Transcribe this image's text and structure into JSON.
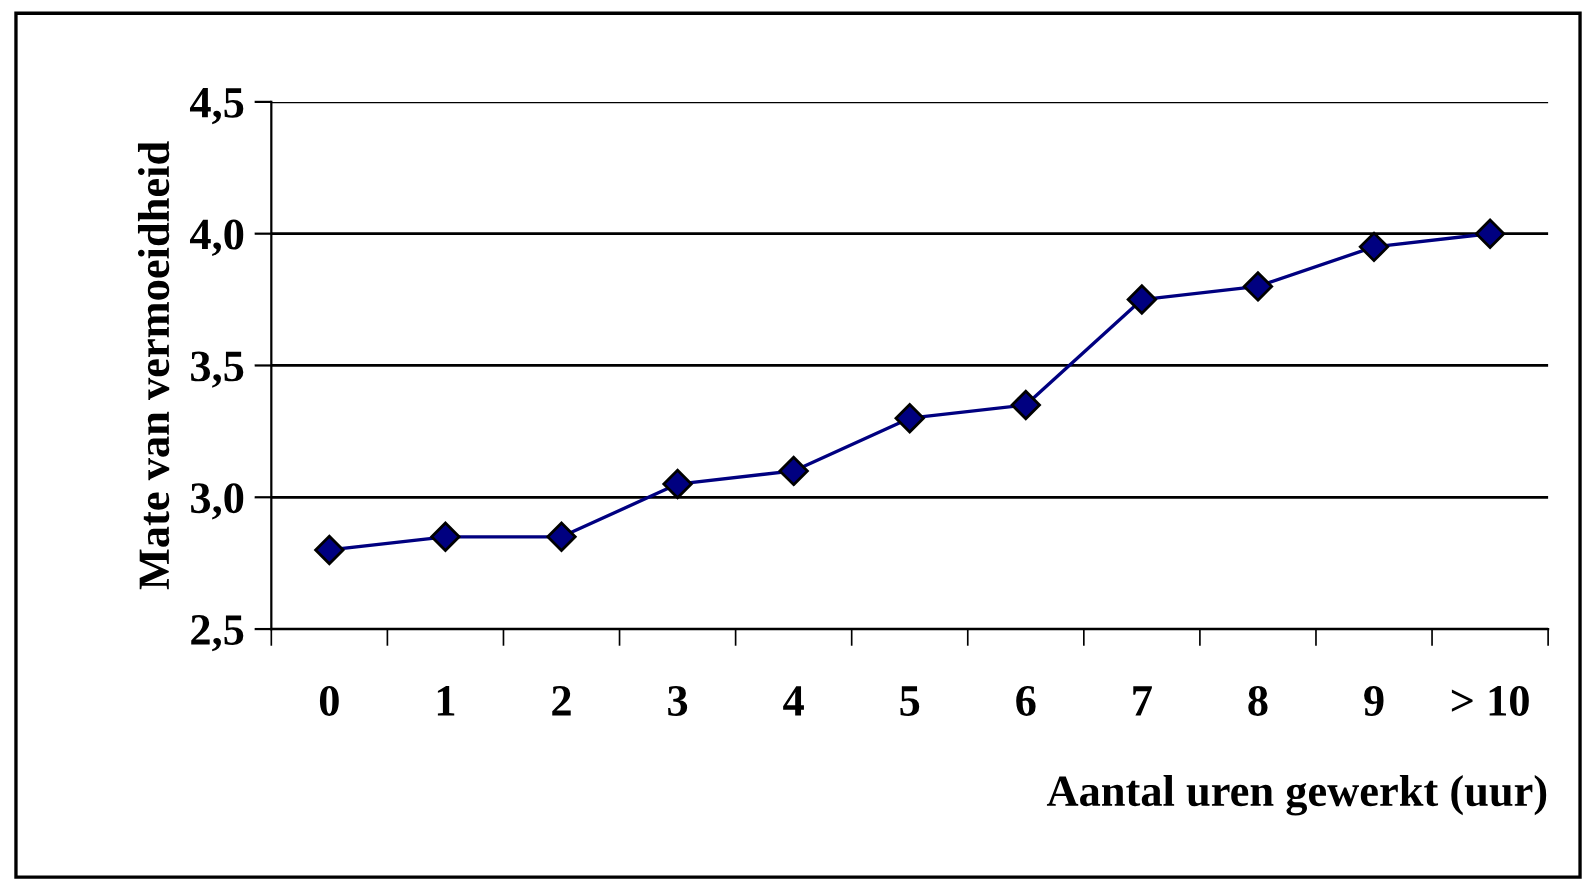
{
  "chart_data": {
    "type": "line",
    "xlabel": "Aantal uren gewerkt (uur)",
    "ylabel": "Mate van vermoeidheid",
    "categories": [
      "0",
      "1",
      "2",
      "3",
      "4",
      "5",
      "6",
      "7",
      "8",
      "9",
      "> 10"
    ],
    "series": [
      {
        "color": "#000080",
        "values": [
          2.8,
          2.85,
          2.85,
          3.05,
          3.1,
          3.3,
          3.35,
          3.75,
          3.8,
          3.95,
          4.0
        ]
      }
    ],
    "marker": "diamond",
    "line_style": "solid",
    "grid": "y",
    "ylim": [
      2.5,
      4.5
    ],
    "yticks": [
      {
        "value": 2.5,
        "label": "2,5"
      },
      {
        "value": 3.0,
        "label": "3,0"
      },
      {
        "value": 3.5,
        "label": "3,5"
      },
      {
        "value": 4.0,
        "label": "4,0"
      },
      {
        "value": 4.5,
        "label": "4,5"
      }
    ]
  }
}
